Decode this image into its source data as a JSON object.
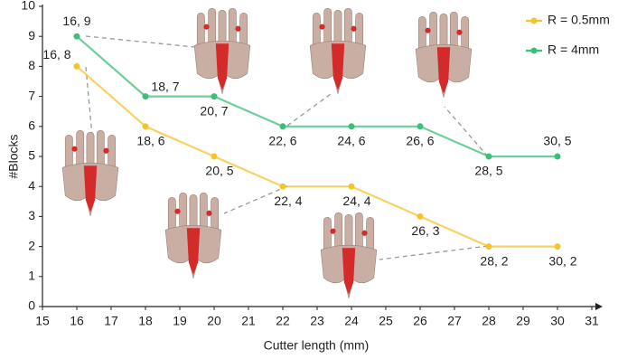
{
  "chart_data": {
    "type": "line",
    "x_label": "Cutter length (mm)",
    "y_label": "#Blocks",
    "x": [
      16,
      18,
      20,
      22,
      24,
      26,
      28,
      30
    ],
    "series": [
      {
        "name": "R = 0.5mm",
        "color": "#f5c32c",
        "values": [
          8,
          6,
          5,
          4,
          4,
          3,
          2,
          2
        ],
        "value_labels": [
          "16, 8",
          "18, 6",
          "20, 5",
          "22, 4",
          "24, 4",
          "26, 3",
          "28, 2",
          "30, 2"
        ]
      },
      {
        "name": "R = 4mm",
        "color": "#3cbf78",
        "values": [
          9,
          7,
          7,
          6,
          6,
          6,
          5,
          5
        ],
        "value_labels": [
          "16, 9",
          "18, 7",
          "20, 7",
          "22, 6",
          "24, 6",
          "26, 6",
          "28, 5",
          "30, 5"
        ]
      }
    ],
    "xlim": [
      15,
      31
    ],
    "xticks": [
      15,
      16,
      17,
      18,
      19,
      20,
      21,
      22,
      23,
      24,
      25,
      26,
      27,
      28,
      29,
      30,
      31
    ],
    "ylim": [
      0,
      10
    ],
    "yticks": [
      0,
      1,
      2,
      3,
      4,
      5,
      6,
      7,
      8,
      9,
      10
    ],
    "grid": false,
    "legend": "top-right"
  }
}
